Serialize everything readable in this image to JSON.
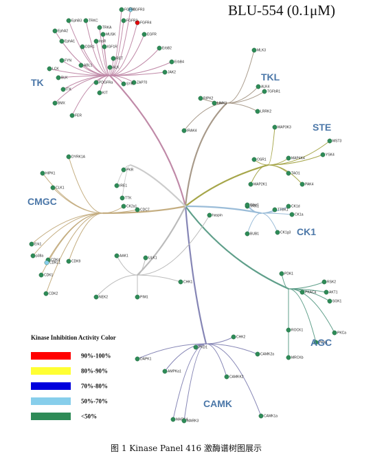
{
  "title": "BLU-554 (0.1μM)",
  "groups": [
    {
      "label": "TK"
    },
    {
      "label": "TKL"
    },
    {
      "label": "STE"
    },
    {
      "label": "CK1"
    },
    {
      "label": "AGC"
    },
    {
      "label": "CAMK"
    },
    {
      "label": "CMGC"
    }
  ],
  "nodes": [
    {
      "label": "FGFR3",
      "color": "#87ceeb"
    },
    {
      "label": "FGFR4",
      "color": "#e8000b"
    },
    {
      "label": "FGFR1",
      "color": "#2e8b57"
    },
    {
      "label": "FGFR2",
      "color": "#2e8b57"
    },
    {
      "label": "EphB3",
      "color": "#2e8b57"
    },
    {
      "label": "EphA2",
      "color": "#2e8b57"
    },
    {
      "label": "EphA1",
      "color": "#2e8b57"
    },
    {
      "label": "TRKC",
      "color": "#2e8b57"
    },
    {
      "label": "TRKA",
      "color": "#2e8b57"
    },
    {
      "label": "MUSK",
      "color": "#2e8b57"
    },
    {
      "label": "InsR",
      "color": "#2e8b57"
    },
    {
      "label": "IGF1R",
      "color": "#2e8b57"
    },
    {
      "label": "DDR1",
      "color": "#2e8b57"
    },
    {
      "label": "LCK",
      "color": "#2e8b57"
    },
    {
      "label": "FYN",
      "color": "#2e8b57"
    },
    {
      "label": "BLK",
      "color": "#2e8b57"
    },
    {
      "label": "ABL1",
      "color": "#2e8b57"
    },
    {
      "label": "EGFR",
      "color": "#2e8b57"
    },
    {
      "label": "ErbB2",
      "color": "#2e8b57"
    },
    {
      "label": "ErbB4",
      "color": "#2e8b57"
    },
    {
      "label": "JAK2",
      "color": "#2e8b57"
    },
    {
      "label": "ZAP70",
      "color": "#2e8b57"
    },
    {
      "label": "SYK",
      "color": "#2e8b57"
    },
    {
      "label": "ITK",
      "color": "#2e8b57"
    },
    {
      "label": "BMX",
      "color": "#2e8b57"
    },
    {
      "label": "FER",
      "color": "#2e8b57"
    },
    {
      "label": "KIT",
      "color": "#2e8b57"
    },
    {
      "label": "PDGFRa",
      "color": "#2e8b57"
    },
    {
      "label": "ALK",
      "color": "#2e8b57"
    },
    {
      "label": "RET",
      "color": "#2e8b57"
    },
    {
      "label": "IRAK4",
      "color": "#2e8b57"
    },
    {
      "label": "RIPK2",
      "color": "#2e8b57"
    },
    {
      "label": "LIMK1",
      "color": "#2e8b57"
    },
    {
      "label": "MLK3",
      "color": "#2e8b57"
    },
    {
      "label": "TGFbR1",
      "color": "#2e8b57"
    },
    {
      "label": "ALK4",
      "color": "#2e8b57"
    },
    {
      "label": "LRRK2",
      "color": "#2e8b57"
    },
    {
      "label": "MAP3K3",
      "color": "#2e8b57"
    },
    {
      "label": "MST3",
      "color": "#2e8b57"
    },
    {
      "label": "MAP2K1",
      "color": "#2e8b57"
    },
    {
      "label": "PAK4",
      "color": "#2e8b57"
    },
    {
      "label": "TAO1",
      "color": "#2e8b57"
    },
    {
      "label": "MAP4K4",
      "color": "#2e8b57"
    },
    {
      "label": "OSR1",
      "color": "#2e8b57"
    },
    {
      "label": "YSK4",
      "color": "#2e8b57"
    },
    {
      "label": "CK1d",
      "color": "#2e8b57"
    },
    {
      "label": "CK1a",
      "color": "#2e8b57"
    },
    {
      "label": "TTBK1",
      "color": "#2e8b57"
    },
    {
      "label": "VRK1",
      "color": "#2e8b57"
    },
    {
      "label": "CK1g3",
      "color": "#2e8b57"
    },
    {
      "label": "PKCa",
      "color": "#2e8b57"
    },
    {
      "label": "ROCK1",
      "color": "#2e8b57"
    },
    {
      "label": "PKACa",
      "color": "#2e8b57"
    },
    {
      "label": "RSK2",
      "color": "#2e8b57"
    },
    {
      "label": "AKT1",
      "color": "#2e8b57"
    },
    {
      "label": "PDK1",
      "color": "#2e8b57"
    },
    {
      "label": "SGK1",
      "color": "#2e8b57"
    },
    {
      "label": "MRCKb",
      "color": "#2e8b57"
    },
    {
      "label": "PKN1",
      "color": "#2e8b57"
    },
    {
      "label": "CAMK1a",
      "color": "#2e8b57"
    },
    {
      "label": "DAPK1",
      "color": "#2e8b57"
    },
    {
      "label": "CHK2",
      "color": "#2e8b57"
    },
    {
      "label": "MARK4",
      "color": "#2e8b57"
    },
    {
      "label": "MARK3",
      "color": "#2e8b57"
    },
    {
      "label": "AMPKa1",
      "color": "#2e8b57"
    },
    {
      "label": "PKD1",
      "color": "#2e8b57"
    },
    {
      "label": "CAMKK2",
      "color": "#2e8b57"
    },
    {
      "label": "CAMK2a",
      "color": "#2e8b57"
    },
    {
      "label": "PIM1",
      "color": "#2e8b57"
    },
    {
      "label": "CHK1",
      "color": "#2e8b57"
    },
    {
      "label": "CDK2",
      "color": "#2e8b57"
    },
    {
      "label": "CDK1",
      "color": "#2e8b57"
    },
    {
      "label": "Erk1",
      "color": "#2e8b57"
    },
    {
      "label": "p38a",
      "color": "#2e8b57"
    },
    {
      "label": "DYRK1A",
      "color": "#2e8b57"
    },
    {
      "label": "CLK1",
      "color": "#2e8b57"
    },
    {
      "label": "HIPK1",
      "color": "#2e8b57"
    },
    {
      "label": "CDC7",
      "color": "#2e8b57"
    },
    {
      "label": "CK2a1",
      "color": "#2e8b57"
    },
    {
      "label": "CDK9",
      "color": "#2e8b57"
    },
    {
      "label": "CDK4",
      "color": "#2e8b57"
    },
    {
      "label": "CDKL1",
      "color": "#87ceeb"
    },
    {
      "label": "IRE1",
      "color": "#2e8b57"
    },
    {
      "label": "TTK",
      "color": "#2e8b57"
    },
    {
      "label": "BUB1",
      "color": "#2e8b57"
    },
    {
      "label": "haspin",
      "color": "#2e8b57"
    },
    {
      "label": "Wee1",
      "color": "#2e8b57"
    },
    {
      "label": "NEK2",
      "color": "#2e8b57"
    },
    {
      "label": "ULK1",
      "color": "#2e8b57"
    },
    {
      "label": "AAK1",
      "color": "#2e8b57"
    },
    {
      "label": "PKR",
      "color": "#2e8b57"
    }
  ],
  "legend": {
    "title": "Kinase Inhibition Activity Color",
    "items": [
      {
        "label": "90%-100%",
        "color": "#ff0000"
      },
      {
        "label": "80%-90%",
        "color": "#ffff33"
      },
      {
        "label": "70%-80%",
        "color": "#0000dd"
      },
      {
        "label": "50%-70%",
        "color": "#87ceeb"
      },
      {
        "label": "<50%",
        "color": "#2e8b57"
      }
    ]
  },
  "caption": "图 1 Kinase Panel 416 激酶谱树图展示"
}
